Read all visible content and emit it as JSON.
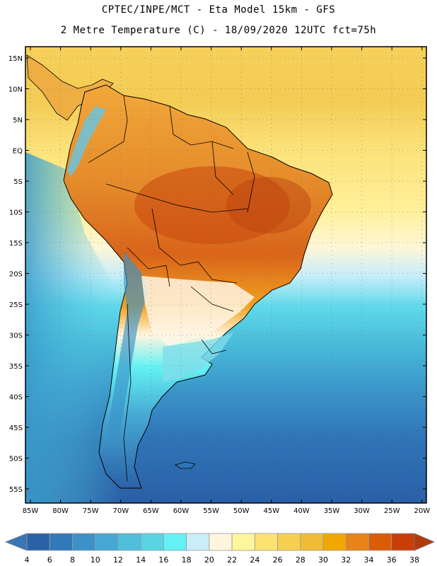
{
  "header": {
    "line1": "CPTEC/INPE/MCT -  Eta Model 15km - GFS",
    "line2": "2 Metre Temperature (C) - 18/09/2020 12UTC fct=75h"
  },
  "map": {
    "lat_labels": [
      "15N",
      "10N",
      "5N",
      "EQ",
      "5S",
      "10S",
      "15S",
      "20S",
      "25S",
      "30S",
      "35S",
      "40S",
      "45S",
      "50S",
      "55S"
    ],
    "lon_labels": [
      "85W",
      "80W",
      "75W",
      "70W",
      "65W",
      "60W",
      "55W",
      "50W",
      "45W",
      "40W",
      "35W",
      "30W",
      "25W",
      "20W"
    ]
  },
  "colorbar": {
    "ticks": [
      "4",
      "6",
      "8",
      "10",
      "12",
      "14",
      "16",
      "18",
      "20",
      "22",
      "24",
      "26",
      "28",
      "30",
      "32",
      "34",
      "36",
      "38"
    ],
    "colors": [
      "#2a62a8",
      "#3179b8",
      "#3a92c8",
      "#46a9d3",
      "#4fbfdb",
      "#58d4e3",
      "#63f1f4",
      "#c9eefa",
      "#fff5dc",
      "#fff59a",
      "#fde272",
      "#f5d050",
      "#eebc37",
      "#f2a703",
      "#e88219",
      "#db5c07",
      "#c93e07"
    ],
    "end_low_color": "#3a75b5",
    "end_high_color": "#b13a0e"
  }
}
